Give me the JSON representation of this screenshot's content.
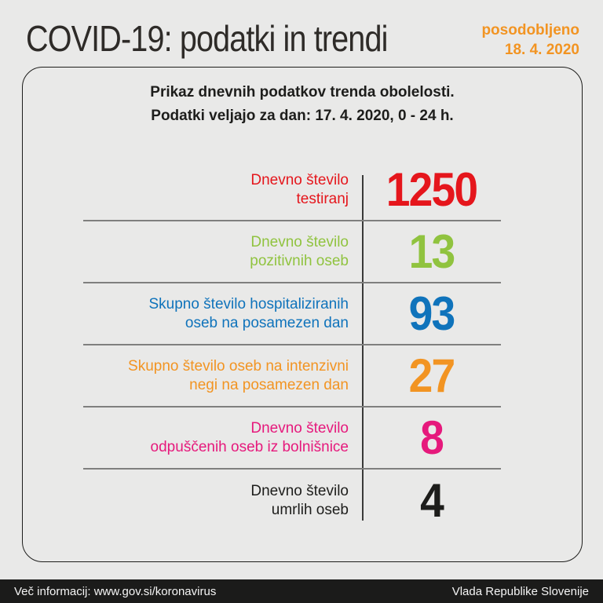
{
  "page": {
    "title": "COVID-19: podatki in trendi",
    "updated_label": "posodobljeno",
    "updated_date": "18. 4. 2020"
  },
  "card": {
    "header_line1": "Prikaz dnevnih podatkov trenda obolelosti.",
    "header_line2": "Podatki veljajo za dan: 17. 4. 2020, 0 - 24 h.",
    "rows": [
      {
        "label_line1": "Dnevno število",
        "label_line2": "testiranj",
        "value": "1250",
        "color": "#e5161c"
      },
      {
        "label_line1": "Dnevno število",
        "label_line2": "pozitivnih oseb",
        "value": "13",
        "color": "#90c33f"
      },
      {
        "label_line1": "Skupno število hospitaliziranih",
        "label_line2": "oseb na posamezen dan",
        "value": "93",
        "color": "#0f73bb"
      },
      {
        "label_line1": "Skupno število oseb na intenzivni",
        "label_line2": "negi na posamezen dan",
        "value": "27",
        "color": "#f29422"
      },
      {
        "label_line1": "Dnevno število",
        "label_line2": "odpuščenih oseb iz bolnišnice",
        "value": "8",
        "color": "#e6197c"
      },
      {
        "label_line1": "Dnevno število",
        "label_line2": "umrlih oseb",
        "value": "4",
        "color": "#1d1d1b"
      }
    ]
  },
  "footer": {
    "left": "Več informacij: www.gov.si/koronavirus",
    "right": "Vlada Republike Slovenije"
  },
  "colors": {
    "background": "#e9e9e8",
    "card_border": "#1d1d1b",
    "accent_orange": "#f29422",
    "red": "#e5161c",
    "green": "#90c33f",
    "blue": "#0f73bb",
    "orange": "#f29422",
    "pink": "#e6197c",
    "dark": "#1d1d1b",
    "divider": "#7f7f7e",
    "vertical_rule": "#3a3a39",
    "footer_bg": "#1b1b1a",
    "footer_text": "#f5f5f5"
  },
  "chart_data": {
    "type": "table",
    "title": "Prikaz dnevnih podatkov trenda obolelosti.",
    "subtitle": "Podatki veljajo za dan: 17. 4. 2020, 0 - 24 h.",
    "categories": [
      "Dnevno število testiranj",
      "Dnevno število pozitivnih oseb",
      "Skupno število hospitaliziranih oseb na posamezen dan",
      "Skupno število oseb na intenzivni negi na posamezen dan",
      "Dnevno število odpuščenih oseb iz bolnišnice",
      "Dnevno število umrlih oseb"
    ],
    "values": [
      1250,
      13,
      93,
      27,
      8,
      4
    ]
  }
}
